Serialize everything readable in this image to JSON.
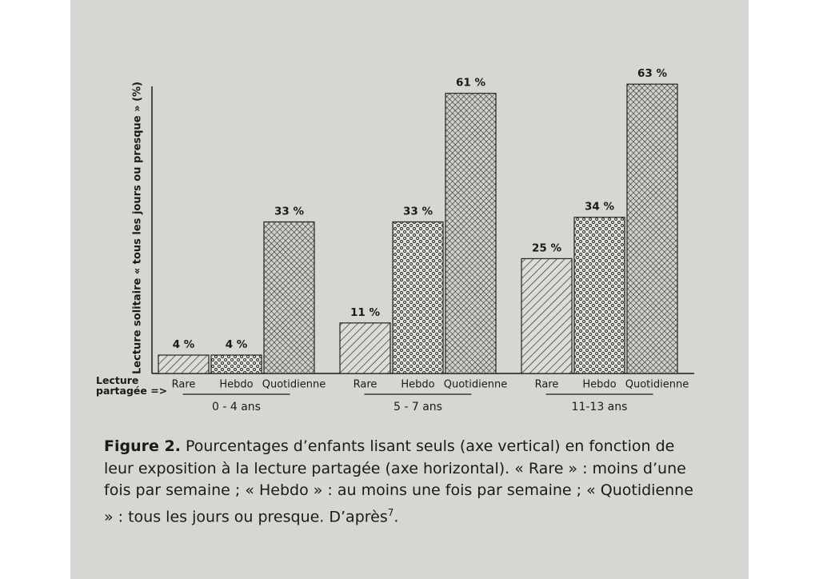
{
  "chart_data": {
    "type": "bar",
    "y_label": "Lecture solitaire « tous les jours ou presque » (%)",
    "x_label": "Lecture partagée =>",
    "categories": [
      "0 - 4 ans",
      "5 - 7 ans",
      "11-13 ans"
    ],
    "series": [
      {
        "name": "Rare",
        "color": "#222222",
        "pattern": "hatch",
        "values": [
          4,
          11,
          25
        ],
        "value_labels": [
          "4 %",
          "11 %",
          "25 %"
        ]
      },
      {
        "name": "Hebdo",
        "color": "#222222",
        "pattern": "dots",
        "values": [
          4,
          33,
          34
        ],
        "value_labels": [
          "4 %",
          "33 %",
          "34 %"
        ]
      },
      {
        "name": "Quotidienne",
        "color": "#222222",
        "pattern": "cross",
        "values": [
          33,
          61,
          63
        ],
        "value_labels": [
          "33 %",
          "61 %",
          "63 %"
        ]
      }
    ],
    "ylim": [
      0,
      70
    ],
    "caption_label": "Figure 2.",
    "caption": " Pourcentages d’enfants lisant seuls (axe vertical) en fonction de leur exposition à la lecture partagée (axe horizontal). « Rare » : moins d’une fois par semaine ; « Hebdo » : au moins une fois par semaine ; « Quotidienne » : tous les jours ou presque. D’après",
    "caption_ref": "7",
    "caption_end": "."
  }
}
